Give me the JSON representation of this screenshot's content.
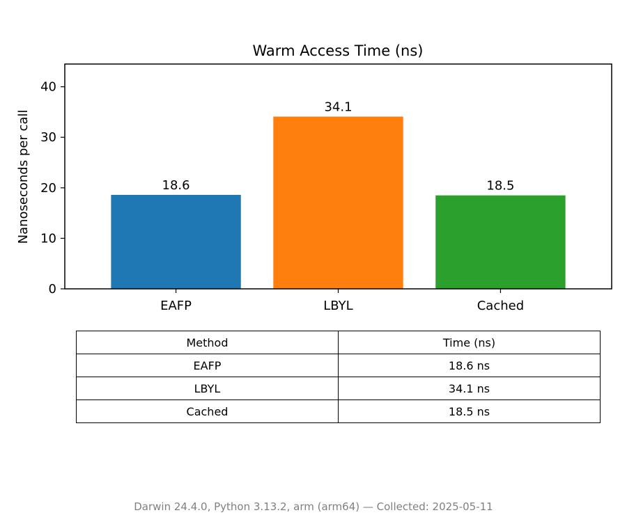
{
  "chart_data": {
    "type": "bar",
    "title": "Warm Access Time (ns)",
    "xlabel": "",
    "ylabel": "Nanoseconds per call",
    "categories": [
      "EAFP",
      "LBYL",
      "Cached"
    ],
    "values": [
      18.6,
      34.1,
      18.5
    ],
    "data_labels": [
      "18.6",
      "34.1",
      "18.5"
    ],
    "colors": [
      "#1f77b4",
      "#ff7f0e",
      "#2ca02c"
    ],
    "ylim": [
      0,
      44.5
    ],
    "yticks": [
      0,
      10,
      20,
      30,
      40
    ],
    "grid": false
  },
  "table": {
    "headers": [
      "Method",
      "Time (ns)"
    ],
    "rows": [
      [
        "EAFP",
        "18.6 ns"
      ],
      [
        "LBYL",
        "34.1 ns"
      ],
      [
        "Cached",
        "18.5 ns"
      ]
    ]
  },
  "footer": "Darwin 24.4.0, Python 3.13.2, arm (arm64) — Collected: 2025-05-11"
}
